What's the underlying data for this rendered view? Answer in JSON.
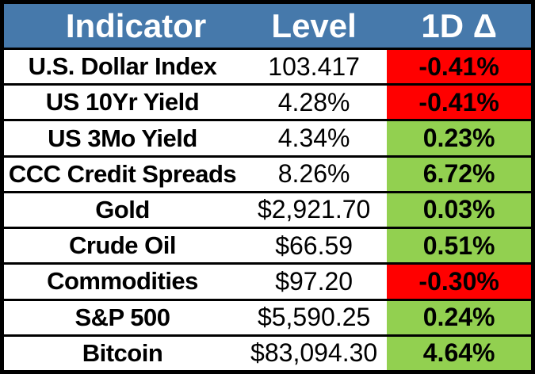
{
  "colors": {
    "header_bg": "#4679AB",
    "header_text": "#FFFFFF",
    "positive_bg": "#92D050",
    "negative_bg": "#FF0000",
    "border": "#000000",
    "text": "#000000",
    "row_bg": "#FFFFFF"
  },
  "chart_data": {
    "type": "table",
    "columns": [
      "Indicator",
      "Level",
      "1D Δ"
    ],
    "rows": [
      {
        "indicator": "U.S. Dollar Index",
        "level": "103.417",
        "delta": "-0.41%",
        "direction": "down"
      },
      {
        "indicator": "US 10Yr Yield",
        "level": "4.28%",
        "delta": "-0.41%",
        "direction": "down"
      },
      {
        "indicator": "US 3Mo Yield",
        "level": "4.34%",
        "delta": "0.23%",
        "direction": "up"
      },
      {
        "indicator": "CCC Credit Spreads",
        "level": "8.26%",
        "delta": "6.72%",
        "direction": "up"
      },
      {
        "indicator": "Gold",
        "level": "$2,921.70",
        "delta": "0.03%",
        "direction": "up"
      },
      {
        "indicator": "Crude Oil",
        "level": "$66.59",
        "delta": "0.51%",
        "direction": "up"
      },
      {
        "indicator": "Commodities",
        "level": "$97.20",
        "delta": "-0.30%",
        "direction": "down"
      },
      {
        "indicator": "S&P 500",
        "level": "$5,590.25",
        "delta": "0.24%",
        "direction": "up"
      },
      {
        "indicator": "Bitcoin",
        "level": "$83,094.30",
        "delta": "4.64%",
        "direction": "up"
      }
    ]
  }
}
